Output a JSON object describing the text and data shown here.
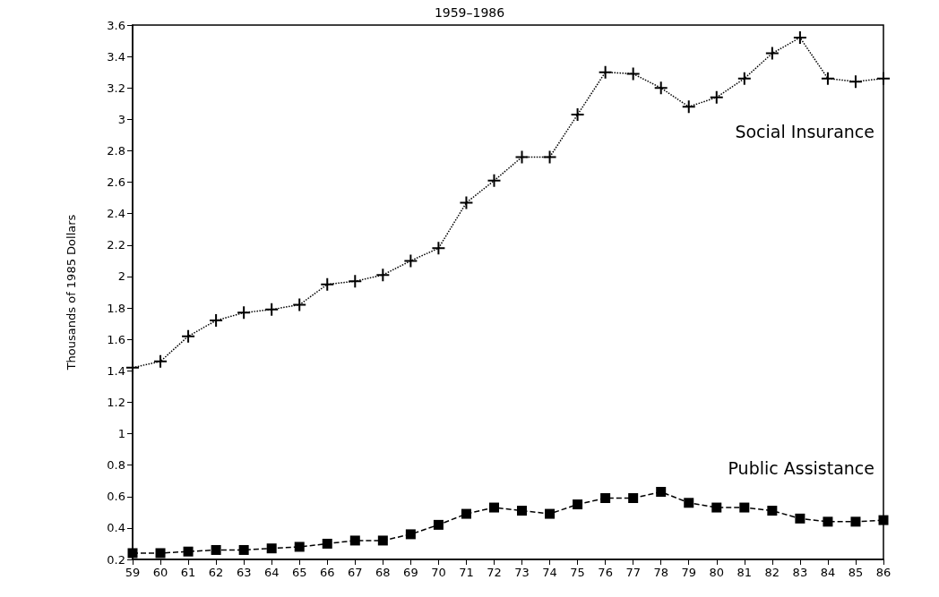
{
  "chart_data": {
    "type": "line",
    "title": "1959–1986",
    "ylabel": "Thousands of 1985 Dollars",
    "categories": [
      "59",
      "60",
      "61",
      "62",
      "63",
      "64",
      "65",
      "66",
      "67",
      "68",
      "69",
      "70",
      "71",
      "72",
      "73",
      "74",
      "75",
      "76",
      "77",
      "78",
      "79",
      "80",
      "81",
      "82",
      "83",
      "84",
      "85",
      "86"
    ],
    "series": [
      {
        "name": "Social Insurance",
        "color": "#000000",
        "marker": "cross",
        "line_style": "dotted",
        "values": [
          1.42,
          1.46,
          1.62,
          1.72,
          1.77,
          1.79,
          1.82,
          1.95,
          1.97,
          2.01,
          2.1,
          2.18,
          2.47,
          2.61,
          2.76,
          2.76,
          3.03,
          3.3,
          3.29,
          3.2,
          3.08,
          3.14,
          3.26,
          3.42,
          3.52,
          3.26,
          3.24,
          3.26
        ]
      },
      {
        "name": "Public Assistance",
        "color": "#000000",
        "marker": "square",
        "line_style": "dashed",
        "values": [
          0.24,
          0.24,
          0.25,
          0.26,
          0.26,
          0.27,
          0.28,
          0.3,
          0.32,
          0.32,
          0.36,
          0.42,
          0.49,
          0.53,
          0.51,
          0.49,
          0.55,
          0.59,
          0.59,
          0.63,
          0.56,
          0.53,
          0.53,
          0.51,
          0.46,
          0.44,
          0.44,
          0.45
        ]
      }
    ],
    "ylim": [
      0.2,
      3.6
    ],
    "yticks": [
      0.2,
      0.4,
      0.6,
      0.8,
      1,
      1.2,
      1.4,
      1.6,
      1.8,
      2,
      2.2,
      2.4,
      2.6,
      2.8,
      3,
      3.2,
      3.4,
      3.6
    ],
    "grid": false,
    "legend": false
  }
}
